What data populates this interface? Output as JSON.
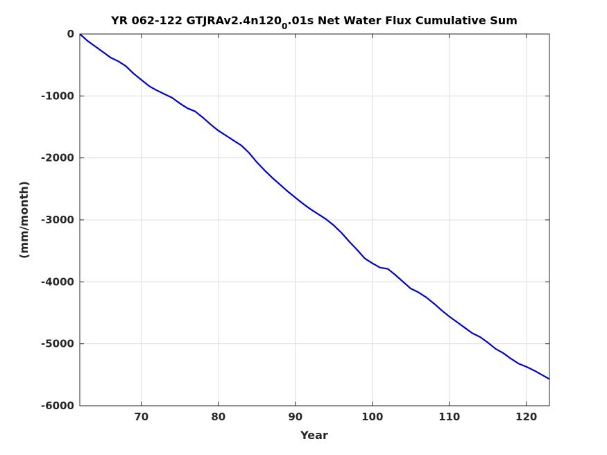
{
  "chart_data": {
    "type": "line",
    "title_main": "YR 062-122 GTJRAv2.4n120",
    "title_sub": "0",
    "title_tail": ".01s Net Water Flux Cumulative Sum",
    "xlabel": "Year",
    "ylabel": "(mm/month)",
    "xlim": [
      62,
      123
    ],
    "ylim": [
      -6000,
      0
    ],
    "xticks": [
      70,
      80,
      90,
      100,
      110,
      120
    ],
    "yticks": [
      0,
      -1000,
      -2000,
      -3000,
      -4000,
      -5000,
      -6000
    ],
    "grid": true,
    "line_color": "#0000cc",
    "series": [
      {
        "x": [
          62,
          63,
          64,
          65,
          66,
          67,
          68,
          69,
          70,
          71,
          72,
          73,
          74,
          75,
          76,
          77,
          78,
          79,
          80,
          81,
          82,
          83,
          84,
          85,
          86,
          87,
          88,
          89,
          90,
          91,
          92,
          93,
          94,
          95,
          96,
          97,
          98,
          99,
          100,
          101,
          102,
          103,
          104,
          105,
          106,
          107,
          108,
          109,
          110,
          111,
          112,
          113,
          114,
          115,
          116,
          117,
          118,
          119,
          120,
          121,
          122,
          123
        ],
        "y": [
          0,
          -110,
          -200,
          -290,
          -380,
          -440,
          -520,
          -640,
          -740,
          -840,
          -910,
          -970,
          -1030,
          -1120,
          -1200,
          -1250,
          -1350,
          -1460,
          -1560,
          -1640,
          -1720,
          -1800,
          -1920,
          -2070,
          -2200,
          -2320,
          -2430,
          -2540,
          -2640,
          -2740,
          -2830,
          -2910,
          -2990,
          -3090,
          -3210,
          -3350,
          -3480,
          -3620,
          -3700,
          -3770,
          -3790,
          -3890,
          -4000,
          -4110,
          -4170,
          -4250,
          -4350,
          -4460,
          -4560,
          -4650,
          -4740,
          -4830,
          -4890,
          -4980,
          -5080,
          -5150,
          -5240,
          -5320,
          -5370,
          -5430,
          -5500,
          -5570
        ]
      }
    ]
  }
}
